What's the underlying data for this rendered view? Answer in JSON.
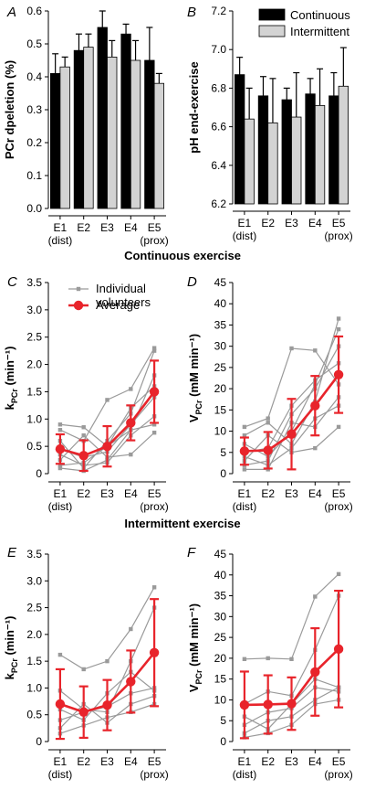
{
  "sections": {
    "continuous": "Continuous exercise",
    "intermittent": "Intermittent exercise"
  },
  "legend_top": {
    "continuous": "Continuous",
    "intermittent": "Intermittent"
  },
  "legend_lines": {
    "individual_line1": "Individual",
    "individual_line2": "volunteers",
    "average": "Average"
  },
  "colors": {
    "continuous_bar": "#000000",
    "intermittent_bar": "#d3d3d3",
    "individual": "#9a9a9a",
    "average": "#e8242b"
  },
  "chart_data": [
    {
      "type": "bar",
      "panel": "A",
      "ylabel": "PCr dpeletion (%)",
      "categories": [
        "E1",
        "E2",
        "E3",
        "E4",
        "E5"
      ],
      "sublabels": [
        "(dist)",
        "",
        "",
        "",
        "(prox)"
      ],
      "ylim": [
        0.0,
        0.6
      ],
      "yticks": [
        "0.0",
        "0.1",
        "0.2",
        "0.3",
        "0.4",
        "0.5",
        "0.6"
      ],
      "series": [
        {
          "name": "Continuous",
          "values": [
            0.41,
            0.48,
            0.55,
            0.53,
            0.45
          ],
          "errors": [
            0.06,
            0.05,
            0.05,
            0.03,
            0.1
          ]
        },
        {
          "name": "Intermittent",
          "values": [
            0.43,
            0.49,
            0.46,
            0.45,
            0.38
          ],
          "errors": [
            0.03,
            0.04,
            0.05,
            0.06,
            0.03
          ]
        }
      ]
    },
    {
      "type": "bar",
      "panel": "B",
      "ylabel": "pH end-exercise",
      "categories": [
        "E1",
        "E2",
        "E3",
        "E4",
        "E5"
      ],
      "sublabels": [
        "(dist)",
        "",
        "",
        "",
        "(prox)"
      ],
      "ylim": [
        6.2,
        7.2
      ],
      "yticks": [
        "6.2",
        "6.4",
        "6.6",
        "6.8",
        "7.0",
        "7.2"
      ],
      "series": [
        {
          "name": "Continuous",
          "values": [
            6.87,
            6.76,
            6.74,
            6.77,
            6.76
          ],
          "errors": [
            0.09,
            0.1,
            0.06,
            0.08,
            0.12
          ]
        },
        {
          "name": "Intermittent",
          "values": [
            6.64,
            6.62,
            6.65,
            6.71,
            6.81
          ],
          "errors": [
            0.16,
            0.23,
            0.23,
            0.19,
            0.2
          ]
        }
      ]
    },
    {
      "type": "line",
      "panel": "C",
      "ylabel_main": "k",
      "ylabel_sub": "PCr",
      "ylabel_rest": " (min⁻¹)",
      "categories": [
        "E1",
        "E2",
        "E3",
        "E4",
        "E5"
      ],
      "sublabels": [
        "(dist)",
        "",
        "",
        "",
        "(prox)"
      ],
      "ylim": [
        0,
        3.5
      ],
      "yticks": [
        "0",
        "0.5",
        "1.0",
        "1.5",
        "2.0",
        "2.5",
        "3.0",
        "3.5"
      ],
      "individuals": [
        [
          0.9,
          0.85,
          0.5,
          0.8,
          1.8
        ],
        [
          0.8,
          0.6,
          1.35,
          1.55,
          2.3
        ],
        [
          0.6,
          0.1,
          0.6,
          1.1,
          2.25
        ],
        [
          0.45,
          0.3,
          0.4,
          0.9,
          1.4
        ],
        [
          0.35,
          0.15,
          0.2,
          0.7,
          1.05
        ],
        [
          0.25,
          0.7,
          0.3,
          0.35,
          0.75
        ],
        [
          0.15,
          0.2,
          0.5,
          1.2,
          1.6
        ],
        [
          0.1,
          0.05,
          0.25,
          0.8,
          0.9
        ]
      ],
      "average": {
        "values": [
          0.45,
          0.33,
          0.5,
          0.93,
          1.5
        ],
        "errors": [
          0.27,
          0.28,
          0.37,
          0.32,
          0.57
        ]
      }
    },
    {
      "type": "line",
      "panel": "D",
      "ylabel_main": "V",
      "ylabel_sub": "PCr",
      "ylabel_rest": " (mM min⁻¹)",
      "categories": [
        "E1",
        "E2",
        "E3",
        "E4",
        "E5"
      ],
      "sublabels": [
        "(dist)",
        "",
        "",
        "",
        "(prox)"
      ],
      "ylim": [
        0,
        45
      ],
      "yticks": [
        "0",
        "5",
        "10",
        "15",
        "20",
        "25",
        "30",
        "35",
        "40",
        "45"
      ],
      "individuals": [
        [
          11,
          13,
          29.5,
          29,
          21
        ],
        [
          9,
          12,
          7,
          17,
          36.5
        ],
        [
          7,
          4,
          10,
          21,
          34
        ],
        [
          5,
          6,
          16,
          22,
          26
        ],
        [
          4,
          2,
          6,
          13,
          16
        ],
        [
          3,
          9,
          5,
          6,
          11
        ],
        [
          2,
          3,
          14,
          20,
          30
        ],
        [
          1,
          1,
          12,
          11,
          18
        ]
      ],
      "average": {
        "values": [
          5.3,
          5.5,
          9.3,
          16.0,
          23.3
        ],
        "errors": [
          3.2,
          4.3,
          8.3,
          7.0,
          9.0
        ]
      }
    },
    {
      "type": "line",
      "panel": "E",
      "ylabel_main": "k",
      "ylabel_sub": "PCr",
      "ylabel_rest": " (min⁻¹)",
      "categories": [
        "E1",
        "E2",
        "E3",
        "E4",
        "E5"
      ],
      "sublabels": [
        "(dist)",
        "",
        "",
        "",
        "(prox)"
      ],
      "ylim": [
        0,
        3.5
      ],
      "yticks": [
        "0",
        "0.5",
        "1.0",
        "1.5",
        "2.0",
        "2.5",
        "3.0",
        "3.5"
      ],
      "individuals": [
        [
          1.62,
          1.35,
          1.5,
          2.1,
          2.88
        ],
        [
          0.95,
          0.6,
          0.55,
          1.5,
          2.5
        ],
        [
          0.6,
          0.4,
          0.9,
          1.3,
          0.95
        ],
        [
          0.4,
          0.55,
          0.65,
          0.9,
          1.0
        ],
        [
          0.25,
          0.7,
          0.35,
          0.7,
          0.85
        ],
        [
          0.15,
          0.3,
          0.45,
          0.55,
          0.7
        ]
      ],
      "average": {
        "values": [
          0.7,
          0.55,
          0.68,
          1.12,
          1.66
        ],
        "errors": [
          0.65,
          0.48,
          0.47,
          0.58,
          1.0
        ]
      }
    },
    {
      "type": "line",
      "panel": "F",
      "ylabel_main": "V",
      "ylabel_sub": "PCr",
      "ylabel_rest": " (mM min⁻¹)",
      "categories": [
        "E1",
        "E2",
        "E3",
        "E4",
        "E5"
      ],
      "sublabels": [
        "(dist)",
        "",
        "",
        "",
        "(prox)"
      ],
      "ylim": [
        0,
        45
      ],
      "yticks": [
        "0",
        "5",
        "10",
        "15",
        "20",
        "25",
        "30",
        "35",
        "40",
        "45"
      ],
      "individuals": [
        [
          19.8,
          20.0,
          19.8,
          34.8,
          40.2
        ],
        [
          9,
          12,
          11,
          22,
          35
        ],
        [
          6,
          3,
          9,
          15,
          13
        ],
        [
          4,
          7,
          8,
          13,
          12
        ],
        [
          2,
          5,
          6,
          10,
          13
        ],
        [
          1,
          2,
          4,
          9,
          10
        ]
      ],
      "average": {
        "values": [
          8.8,
          8.9,
          9.1,
          16.7,
          22.2
        ],
        "errors": [
          8.0,
          7.0,
          6.3,
          10.5,
          14.0
        ]
      }
    }
  ]
}
